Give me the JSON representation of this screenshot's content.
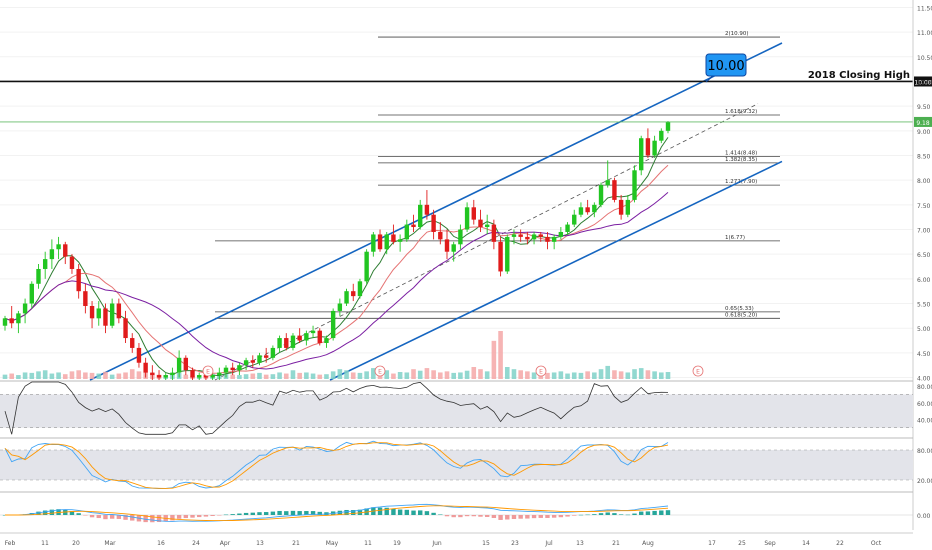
{
  "chart_data": {
    "type": "candlestick",
    "price_axis": {
      "ticks": [
        "11.50",
        "11.00",
        "10.50",
        "10.00",
        "9.50",
        "9.00",
        "8.50",
        "8.00",
        "7.50",
        "7.00",
        "6.50",
        "6.00",
        "5.50",
        "5.00",
        "4.50",
        "4.00"
      ],
      "ylim": [
        3.95,
        11.55
      ]
    },
    "current_price": {
      "label": "9.18",
      "value": 9.18,
      "color": "#4caf50"
    },
    "closing_high": {
      "label": "2018 Closing High",
      "value": 10.0,
      "badge": "10.00"
    },
    "callout": {
      "label": "10.00",
      "fill": "#2196f3"
    },
    "fib_levels": [
      {
        "label": "2(10.90)",
        "value": 10.9
      },
      {
        "label": "1.618(9.32)",
        "value": 9.32
      },
      {
        "label": "1.414(8.48)",
        "value": 8.48
      },
      {
        "label": "1.382(8.35)",
        "value": 8.35
      },
      {
        "label": "1.272(7.90)",
        "value": 7.9
      },
      {
        "label": "1(6.77)",
        "value": 6.77
      },
      {
        "label": "0.65(5.33)",
        "value": 5.33
      },
      {
        "label": "0.618(5.20)",
        "value": 5.2
      }
    ],
    "channel_color": "#1565c0",
    "up_color": "#26a69a",
    "candle_up_color": "#21c521",
    "candle_down_color": "#e01b1b",
    "ma_colors": [
      "#2e7d32",
      "#e57373",
      "#7b1fa2"
    ],
    "event_markers": [
      "E",
      "E",
      "E",
      "E"
    ],
    "x_axis": {
      "labels": [
        "Feb",
        "11",
        "20",
        "Mar",
        "16",
        "24",
        "Apr",
        "13",
        "21",
        "May",
        "11",
        "19",
        "Jun",
        "15",
        "23",
        "Jul",
        "13",
        "21",
        "Aug",
        "17",
        "25",
        "Sep",
        "14",
        "22",
        "Oct"
      ]
    },
    "candles": [
      [
        5.05,
        5.25,
        4.95,
        5.2
      ],
      [
        5.2,
        5.45,
        5.0,
        5.1
      ],
      [
        5.1,
        5.35,
        4.9,
        5.3
      ],
      [
        5.3,
        5.6,
        5.1,
        5.5
      ],
      [
        5.5,
        5.95,
        5.4,
        5.9
      ],
      [
        5.9,
        6.3,
        5.8,
        6.2
      ],
      [
        6.2,
        6.55,
        6.0,
        6.4
      ],
      [
        6.4,
        6.8,
        6.2,
        6.6
      ],
      [
        6.6,
        6.85,
        6.4,
        6.7
      ],
      [
        6.7,
        6.75,
        6.3,
        6.45
      ],
      [
        6.45,
        6.5,
        6.1,
        6.2
      ],
      [
        6.2,
        6.3,
        5.6,
        5.75
      ],
      [
        5.75,
        5.9,
        5.3,
        5.45
      ],
      [
        5.45,
        5.55,
        5.0,
        5.2
      ],
      [
        5.2,
        5.55,
        5.05,
        5.4
      ],
      [
        5.4,
        5.5,
        4.9,
        5.05
      ],
      [
        5.05,
        5.6,
        5.0,
        5.5
      ],
      [
        5.5,
        5.6,
        5.1,
        5.2
      ],
      [
        5.2,
        5.35,
        4.7,
        4.8
      ],
      [
        4.8,
        4.9,
        4.5,
        4.6
      ],
      [
        4.6,
        4.7,
        4.2,
        4.3
      ],
      [
        4.3,
        4.4,
        4.0,
        4.1
      ],
      [
        4.1,
        4.25,
        3.95,
        4.05
      ],
      [
        4.05,
        4.15,
        3.95,
        4.0
      ],
      [
        4.0,
        4.1,
        3.95,
        4.05
      ],
      [
        4.05,
        4.2,
        3.95,
        4.1
      ],
      [
        4.1,
        4.55,
        4.0,
        4.4
      ],
      [
        4.4,
        4.45,
        4.05,
        4.15
      ],
      [
        4.15,
        4.2,
        3.95,
        4.0
      ],
      [
        4.0,
        4.1,
        3.95,
        4.05
      ],
      [
        4.05,
        4.15,
        3.95,
        4.0
      ],
      [
        4.0,
        4.1,
        3.95,
        4.05
      ],
      [
        4.05,
        4.2,
        3.95,
        4.1
      ],
      [
        4.1,
        4.25,
        4.0,
        4.2
      ],
      [
        4.2,
        4.3,
        4.05,
        4.15
      ],
      [
        4.15,
        4.3,
        4.05,
        4.25
      ],
      [
        4.25,
        4.4,
        4.15,
        4.35
      ],
      [
        4.35,
        4.45,
        4.2,
        4.3
      ],
      [
        4.3,
        4.5,
        4.25,
        4.45
      ],
      [
        4.45,
        4.6,
        4.3,
        4.4
      ],
      [
        4.4,
        4.65,
        4.35,
        4.6
      ],
      [
        4.6,
        4.85,
        4.5,
        4.8
      ],
      [
        4.8,
        4.9,
        4.55,
        4.6
      ],
      [
        4.6,
        4.9,
        4.55,
        4.85
      ],
      [
        4.85,
        5.0,
        4.7,
        4.75
      ],
      [
        4.75,
        4.95,
        4.65,
        4.9
      ],
      [
        4.9,
        5.05,
        4.8,
        4.95
      ],
      [
        4.95,
        5.0,
        4.65,
        4.7
      ],
      [
        4.7,
        4.85,
        4.6,
        4.8
      ],
      [
        4.8,
        5.4,
        4.75,
        5.35
      ],
      [
        5.35,
        5.6,
        5.25,
        5.5
      ],
      [
        5.5,
        5.8,
        5.45,
        5.75
      ],
      [
        5.75,
        5.9,
        5.55,
        5.65
      ],
      [
        5.65,
        6.0,
        5.6,
        5.95
      ],
      [
        5.95,
        6.6,
        5.9,
        6.55
      ],
      [
        6.55,
        6.95,
        6.45,
        6.9
      ],
      [
        6.9,
        7.0,
        6.55,
        6.6
      ],
      [
        6.6,
        6.95,
        6.5,
        6.9
      ],
      [
        6.9,
        7.1,
        6.7,
        6.75
      ],
      [
        6.75,
        6.9,
        6.55,
        6.8
      ],
      [
        6.8,
        7.2,
        6.75,
        7.1
      ],
      [
        7.1,
        7.3,
        6.95,
        7.05
      ],
      [
        7.05,
        7.6,
        7.0,
        7.5
      ],
      [
        7.5,
        7.8,
        7.2,
        7.3
      ],
      [
        7.3,
        7.4,
        6.8,
        6.95
      ],
      [
        6.95,
        7.15,
        6.7,
        6.8
      ],
      [
        6.8,
        7.0,
        6.4,
        6.55
      ],
      [
        6.55,
        6.75,
        6.35,
        6.7
      ],
      [
        6.7,
        7.1,
        6.6,
        7.0
      ],
      [
        7.0,
        7.55,
        6.95,
        7.45
      ],
      [
        7.45,
        7.6,
        7.1,
        7.2
      ],
      [
        7.2,
        7.4,
        6.95,
        7.05
      ],
      [
        7.05,
        7.3,
        6.9,
        7.1
      ],
      [
        7.1,
        7.2,
        6.6,
        6.75
      ],
      [
        6.75,
        6.85,
        6.05,
        6.15
      ],
      [
        6.15,
        6.9,
        6.1,
        6.85
      ],
      [
        6.85,
        7.0,
        6.7,
        6.9
      ],
      [
        6.9,
        7.0,
        6.75,
        6.85
      ],
      [
        6.85,
        6.95,
        6.7,
        6.8
      ],
      [
        6.8,
        6.95,
        6.7,
        6.9
      ],
      [
        6.9,
        6.95,
        6.75,
        6.85
      ],
      [
        6.85,
        6.95,
        6.6,
        6.75
      ],
      [
        6.75,
        6.9,
        6.6,
        6.85
      ],
      [
        6.85,
        7.05,
        6.8,
        6.95
      ],
      [
        6.95,
        7.15,
        6.9,
        7.1
      ],
      [
        7.1,
        7.4,
        7.05,
        7.3
      ],
      [
        7.3,
        7.55,
        7.25,
        7.45
      ],
      [
        7.45,
        7.6,
        7.3,
        7.35
      ],
      [
        7.35,
        7.55,
        7.25,
        7.5
      ],
      [
        7.5,
        7.95,
        7.45,
        7.9
      ],
      [
        7.9,
        8.4,
        7.85,
        8.0
      ],
      [
        8.0,
        8.05,
        7.55,
        7.6
      ],
      [
        7.6,
        7.7,
        7.2,
        7.3
      ],
      [
        7.3,
        7.7,
        7.25,
        7.6
      ],
      [
        7.6,
        8.3,
        7.55,
        8.2
      ],
      [
        8.2,
        8.9,
        8.1,
        8.85
      ],
      [
        8.85,
        9.05,
        8.45,
        8.5
      ],
      [
        8.5,
        8.9,
        8.45,
        8.8
      ],
      [
        8.8,
        9.05,
        8.75,
        9.0
      ],
      [
        9.0,
        9.2,
        8.95,
        9.18
      ]
    ],
    "volume": [
      0.2,
      0.25,
      0.18,
      0.3,
      0.28,
      0.35,
      0.4,
      0.25,
      0.3,
      0.22,
      0.35,
      0.4,
      0.3,
      0.28,
      0.25,
      0.33,
      0.2,
      0.25,
      0.3,
      0.45,
      0.35,
      0.3,
      0.25,
      0.2,
      0.18,
      0.22,
      0.28,
      0.2,
      0.15,
      0.18,
      0.2,
      0.22,
      0.18,
      0.25,
      0.2,
      0.18,
      0.22,
      0.25,
      0.28,
      0.2,
      0.22,
      0.3,
      0.25,
      0.4,
      0.28,
      0.3,
      0.25,
      0.2,
      0.22,
      0.35,
      0.45,
      0.4,
      0.3,
      0.28,
      0.35,
      0.5,
      0.3,
      0.4,
      0.25,
      0.32,
      0.3,
      0.45,
      0.38,
      0.5,
      0.4,
      0.3,
      0.35,
      0.28,
      0.3,
      0.38,
      0.55,
      0.45,
      0.35,
      1.75,
      2.2,
      0.55,
      0.45,
      0.4,
      0.35,
      0.3,
      0.25,
      0.28,
      0.3,
      0.35,
      0.25,
      0.3,
      0.28,
      0.35,
      0.3,
      0.45,
      0.6,
      0.4,
      0.35,
      0.3,
      0.45,
      0.5,
      0.4,
      0.35,
      0.3,
      0.32
    ],
    "rsi": {
      "ticks": [
        "80.00",
        "60.00",
        "40.00"
      ],
      "band": [
        30,
        70
      ]
    },
    "stoch": {
      "ticks": [
        "80.00",
        "20.00"
      ],
      "band": [
        20,
        80
      ]
    },
    "macd": {
      "ticks": [
        "0.00"
      ]
    }
  }
}
